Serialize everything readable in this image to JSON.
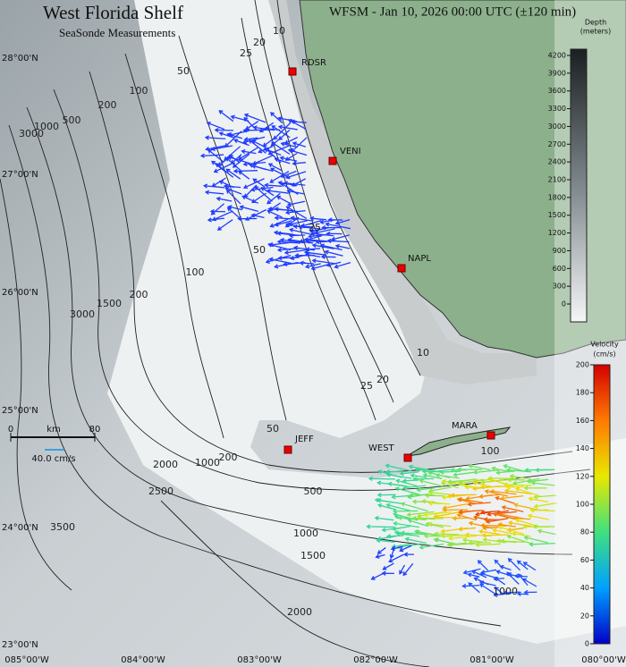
{
  "header": {
    "title": "West Florida Shelf",
    "subtitle": "SeaSonde Measurements",
    "info": "WFSM - Jan 10, 2026 00:00 UTC (±120 min)"
  },
  "stations": [
    "RDSR",
    "VENI",
    "NAPL",
    "JEFF",
    "WEST",
    "MARA"
  ],
  "latitudes": [
    "28°00'N",
    "27°00'N",
    "26°00'N",
    "25°00'N",
    "24°00'N",
    "23°00'N"
  ],
  "longitudes": [
    "085°00'W",
    "084°00'W",
    "083°00'W",
    "082°00'W",
    "081°00'W",
    "080°00'W"
  ],
  "contour_labels": [
    "10",
    "20",
    "25",
    "50",
    "100",
    "200",
    "500",
    "1000",
    "3000",
    "25",
    "50",
    "100",
    "200",
    "1500",
    "3000",
    "10",
    "20",
    "25",
    "50",
    "200",
    "1000",
    "500",
    "2000",
    "2500",
    "3500",
    "1000",
    "1500",
    "2000",
    "100",
    "1000"
  ],
  "scale": {
    "start": "0",
    "unit": "km",
    "end": "80",
    "vector": "40.0 cm/s"
  },
  "depth_bar": {
    "title": "Depth",
    "unit": "(meters)",
    "ticks": [
      "0",
      "300",
      "600",
      "900",
      "1200",
      "1500",
      "1800",
      "2100",
      "2400",
      "2700",
      "3000",
      "3300",
      "3600",
      "3900",
      "4200"
    ]
  },
  "velocity_bar": {
    "title": "Velocity",
    "unit": "(cm/s)",
    "ticks": [
      "0",
      "20",
      "40",
      "60",
      "80",
      "100",
      "120",
      "140",
      "160",
      "180",
      "200"
    ]
  }
}
